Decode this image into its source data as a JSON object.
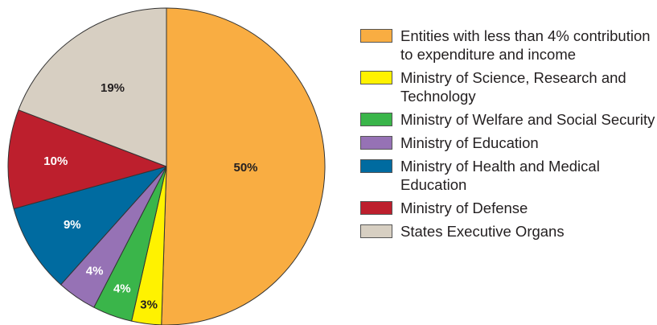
{
  "chart_data": {
    "type": "pie",
    "title": "",
    "slices": [
      {
        "label": "Entities with less than 4% contribution to expenditure and income",
        "value": 50,
        "value_label": "50%",
        "color": "#f9ad42",
        "label_color": "#231f20"
      },
      {
        "label": "Ministry of Science, Research and Technology",
        "value": 3,
        "value_label": "3%",
        "color": "#fff200",
        "label_color": "#231f20"
      },
      {
        "label": "Ministry of Welfare and Social Security",
        "value": 4,
        "value_label": "4%",
        "color": "#3ab54a",
        "label_color": "#ffffff"
      },
      {
        "label": "Ministry of Education",
        "value": 4,
        "value_label": "4%",
        "color": "#9672b5",
        "label_color": "#ffffff"
      },
      {
        "label": "Ministry of Health and Medical Education",
        "value": 9,
        "value_label": "9%",
        "color": "#006ba0",
        "label_color": "#ffffff"
      },
      {
        "label": "Ministry of Defense",
        "value": 10,
        "value_label": "10%",
        "color": "#bd1f2d",
        "label_color": "#ffffff"
      },
      {
        "label": "States Executive Organs",
        "value": 19,
        "value_label": "19%",
        "color": "#d7cfc2",
        "label_color": "#231f20"
      }
    ],
    "legend_position": "right"
  },
  "legend": {
    "items": [
      {
        "label": "Entities with less than 4% contribution to expenditure and income",
        "color": "#f9ad42"
      },
      {
        "label": "Ministry of Science, Research and Technology",
        "color": "#fff200"
      },
      {
        "label": "Ministry of Welfare and Social Security",
        "color": "#3ab54a"
      },
      {
        "label": "Ministry of Education",
        "color": "#9672b5"
      },
      {
        "label": "Ministry of Health and Medical Education",
        "color": "#006ba0"
      },
      {
        "label": "Ministry of Defense",
        "color": "#bd1f2d"
      },
      {
        "label": "States Executive Organs",
        "color": "#d7cfc2"
      }
    ]
  }
}
